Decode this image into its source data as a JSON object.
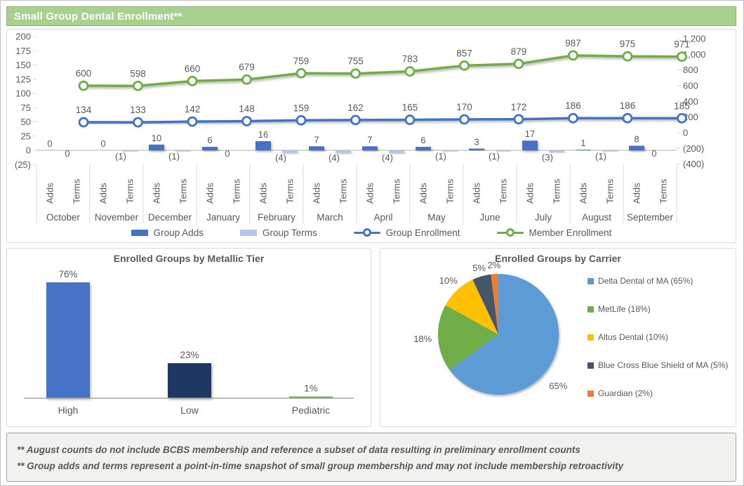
{
  "header": {
    "title": "Small Group Dental Enrollment**"
  },
  "chart_data": [
    {
      "type": "bar",
      "subtype": "combo-bar-line",
      "title": "Small Group Dental Enrollment**",
      "categories": [
        "October",
        "November",
        "December",
        "January",
        "February",
        "March",
        "April",
        "May",
        "June",
        "July",
        "August",
        "September"
      ],
      "category_sub_labels": [
        "Adds",
        "Terms"
      ],
      "left_axis": {
        "ticks": [
          "200",
          "175",
          "150",
          "125",
          "100",
          "75",
          "50",
          "25",
          "0",
          "(25)"
        ],
        "min": -25,
        "max": 200
      },
      "right_axis": {
        "ticks": [
          "1,200",
          "1,000",
          "800",
          "600",
          "400",
          "200",
          "0",
          "(200)",
          "(400)"
        ],
        "min": -400,
        "max": 1200
      },
      "series": [
        {
          "name": "Group Adds",
          "render": "bar",
          "axis": "left",
          "color": "#4472C4",
          "values": [
            0,
            0,
            10,
            6,
            16,
            7,
            7,
            6,
            3,
            17,
            1,
            8
          ],
          "labels": [
            "0",
            "0",
            "10",
            "6",
            "16",
            "7",
            "7",
            "6",
            "3",
            "17",
            "1",
            "8"
          ]
        },
        {
          "name": "Group Terms",
          "render": "bar",
          "axis": "left",
          "color": "#B4C7E7",
          "values": [
            0,
            -1,
            -1,
            0,
            -4,
            -4,
            -4,
            -1,
            -1,
            -3,
            -1,
            0
          ],
          "labels": [
            "0",
            "(1)",
            "(1)",
            "0",
            "(4)",
            "(4)",
            "(4)",
            "(1)",
            "(1)",
            "(3)",
            "(1)",
            "0"
          ]
        },
        {
          "name": "Group Enrollment",
          "render": "line",
          "axis": "right",
          "color": "#4472C4",
          "values": [
            134,
            133,
            142,
            148,
            159,
            162,
            165,
            170,
            172,
            186,
            186,
            185
          ]
        },
        {
          "name": "Member Enrollment",
          "render": "line",
          "axis": "right",
          "color": "#70AD47",
          "values": [
            600,
            598,
            660,
            679,
            759,
            755,
            783,
            857,
            879,
            987,
            975,
            971
          ]
        }
      ],
      "legend_position": "bottom",
      "grid": false
    },
    {
      "type": "bar",
      "title": "Enrolled Groups by Metallic Tier",
      "categories": [
        "High",
        "Low",
        "Pediatric"
      ],
      "values": [
        76,
        23,
        1
      ],
      "labels": [
        "76%",
        "23%",
        "1%"
      ],
      "colors": [
        "#4472C4",
        "#1F3864",
        "#70AD47"
      ],
      "ylim": [
        0,
        80
      ],
      "grid": false
    },
    {
      "type": "pie",
      "title": "Enrolled Groups by Carrier",
      "slices": [
        {
          "label": "Delta Dental of MA (65%)",
          "pct_label": "65%",
          "value": 65,
          "color": "#5B9BD5"
        },
        {
          "label": "MetLife (18%)",
          "pct_label": "18%",
          "value": 18,
          "color": "#70AD47"
        },
        {
          "label": "Altus Dental (10%)",
          "pct_label": "10%",
          "value": 10,
          "color": "#FFC000"
        },
        {
          "label": "Blue Cross Blue Shield of MA (5%)",
          "pct_label": "5%",
          "value": 5,
          "color": "#44546A"
        },
        {
          "label": "Guardian (2%)",
          "pct_label": "2%",
          "value": 2,
          "color": "#ED7D31"
        }
      ],
      "legend_position": "right"
    }
  ],
  "footnotes": {
    "lines": [
      "** August counts do not include BCBS membership and reference a subset of data resulting in preliminary enrollment counts",
      "** Group adds and terms represent a point-in-time snapshot of small group membership and may not include membership retroactivity"
    ]
  }
}
